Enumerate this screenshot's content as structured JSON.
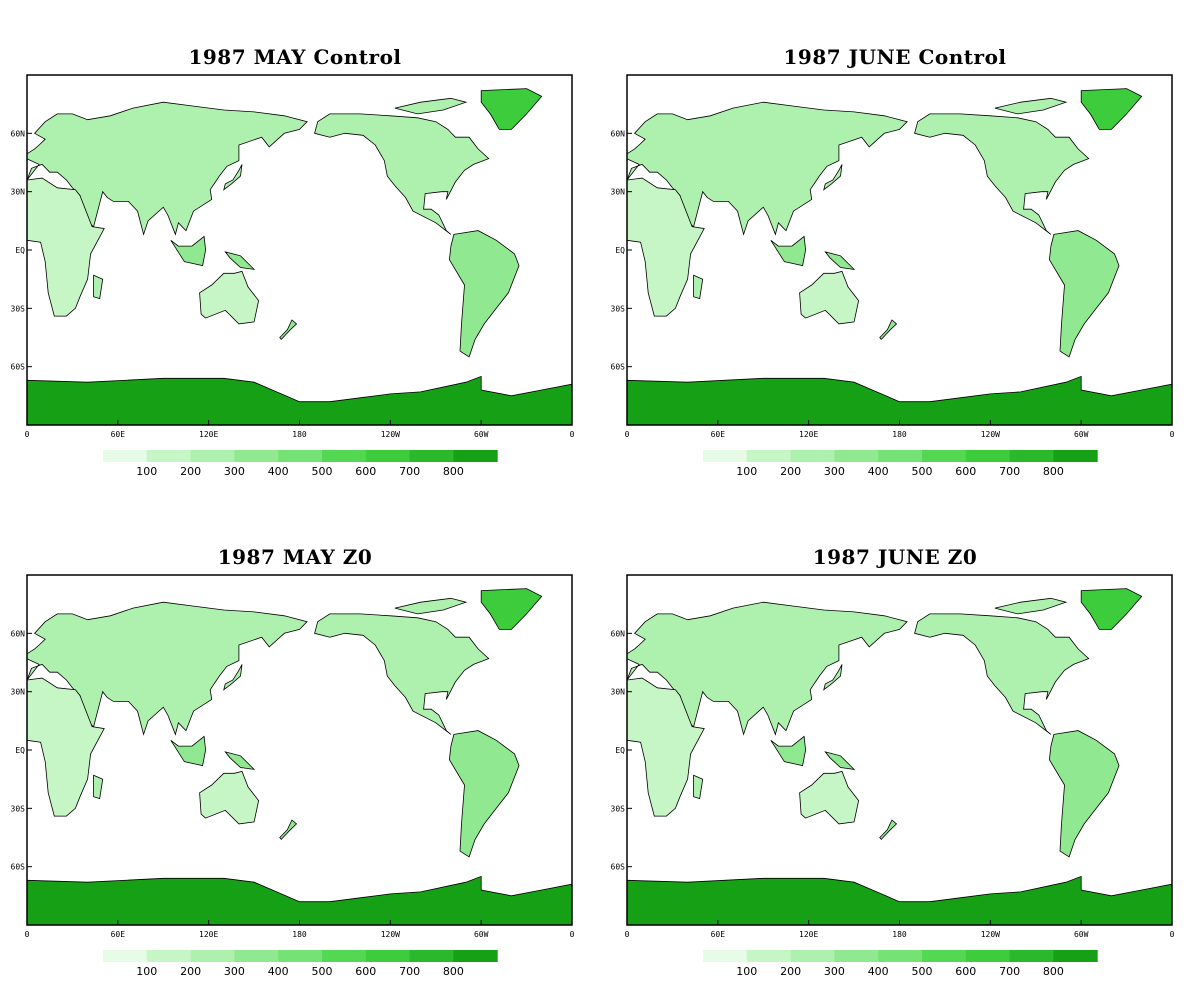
{
  "palette": [
    "#e6fce6",
    "#c6f6c6",
    "#aef0ae",
    "#90e890",
    "#74e274",
    "#54d854",
    "#3ccc3c",
    "#2cb82c",
    "#16a016"
  ],
  "colorbar": {
    "ticks": [
      "100",
      "200",
      "300",
      "400",
      "500",
      "600",
      "700",
      "800"
    ]
  },
  "axes": {
    "lat_labels": [
      "60N",
      "30N",
      "EQ",
      "30S",
      "60S"
    ],
    "lon_labels": [
      "0",
      "60E",
      "120E",
      "180",
      "120W",
      "60W",
      "0"
    ]
  },
  "panels": [
    {
      "title": "1987 MAY Control"
    },
    {
      "title": "1987 JUNE Control"
    },
    {
      "title": "1987 MAY Z0"
    },
    {
      "title": "1987 JUNE Z0"
    }
  ]
}
